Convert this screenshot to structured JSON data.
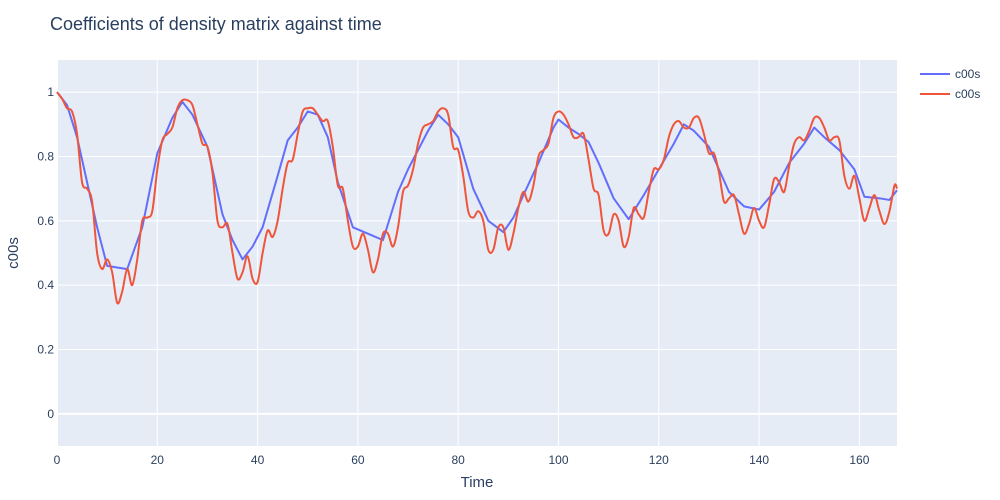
{
  "chart_data": {
    "type": "line",
    "title": "Coefficients of density matrix against time",
    "xlabel": "Time",
    "ylabel": "c00s",
    "xlim": [
      0,
      167.5
    ],
    "ylim": [
      -0.1,
      1.1
    ],
    "xticks": [
      0,
      20,
      40,
      60,
      80,
      100,
      120,
      140,
      160
    ],
    "yticks": [
      0,
      0.2,
      0.4,
      0.6,
      0.8,
      1
    ],
    "grid": true,
    "legend_position": "top-right",
    "colors": {
      "plot_bg": "#e5ecf6",
      "grid": "#ffffff",
      "text": "#2a3f5f"
    },
    "series": [
      {
        "name": "c00s",
        "color": "#636efa",
        "x": [
          0,
          2,
          4,
          6,
          8,
          10,
          12,
          14,
          17,
          20,
          23,
          25,
          27,
          30,
          33,
          35,
          37,
          39,
          41,
          44,
          46,
          48,
          50,
          52,
          54,
          56,
          59,
          62,
          65,
          68,
          70,
          72,
          74,
          76,
          78,
          80,
          83,
          86,
          89,
          91,
          93,
          96,
          99,
          100,
          102,
          104,
          106,
          108,
          111,
          114,
          117,
          120,
          123,
          125,
          127,
          130,
          132,
          134,
          137,
          140,
          143,
          146,
          149,
          151,
          153,
          156,
          159,
          161,
          164,
          166,
          167.5
        ],
        "y": [
          1.0,
          0.96,
          0.86,
          0.72,
          0.58,
          0.46,
          0.455,
          0.45,
          0.58,
          0.81,
          0.92,
          0.97,
          0.93,
          0.83,
          0.62,
          0.54,
          0.48,
          0.52,
          0.58,
          0.74,
          0.85,
          0.89,
          0.94,
          0.93,
          0.86,
          0.72,
          0.58,
          0.56,
          0.54,
          0.69,
          0.76,
          0.82,
          0.88,
          0.93,
          0.9,
          0.86,
          0.7,
          0.6,
          0.565,
          0.61,
          0.68,
          0.78,
          0.89,
          0.915,
          0.89,
          0.87,
          0.845,
          0.78,
          0.67,
          0.605,
          0.68,
          0.76,
          0.84,
          0.9,
          0.88,
          0.83,
          0.76,
          0.69,
          0.645,
          0.635,
          0.69,
          0.78,
          0.84,
          0.89,
          0.86,
          0.82,
          0.76,
          0.675,
          0.67,
          0.665,
          0.695
        ]
      },
      {
        "name": "c00s",
        "color": "#ef553b",
        "x": [
          0,
          1,
          2,
          3,
          4,
          5,
          6,
          7,
          8,
          9,
          10,
          11,
          12,
          13,
          14,
          15,
          16,
          17,
          18,
          19,
          20,
          21,
          22,
          23,
          24,
          25,
          26,
          27,
          28,
          29,
          30,
          31,
          32,
          33,
          34,
          35,
          36,
          37,
          38,
          39,
          40,
          41,
          42,
          43,
          44,
          45,
          46,
          47,
          48,
          49,
          50,
          51,
          52,
          53,
          54,
          55,
          56,
          57,
          58,
          59,
          60,
          61,
          62,
          63,
          64,
          65,
          66,
          67,
          68,
          69,
          70,
          71,
          72,
          73,
          74,
          75,
          76,
          77,
          78,
          79,
          80,
          81,
          82,
          83,
          84,
          85,
          86,
          87,
          88,
          89,
          90,
          91,
          92,
          93,
          94,
          95,
          96,
          97,
          98,
          99,
          100,
          101,
          102,
          103,
          104,
          105,
          106,
          107,
          108,
          109,
          110,
          111,
          112,
          113,
          114,
          115,
          116,
          117,
          118,
          119,
          120,
          121,
          122,
          123,
          124,
          125,
          126,
          127,
          128,
          129,
          130,
          131,
          132,
          133,
          134,
          135,
          136,
          137,
          138,
          139,
          140,
          141,
          142,
          143,
          144,
          145,
          146,
          147,
          148,
          149,
          150,
          151,
          152,
          153,
          154,
          155,
          156,
          157,
          158,
          159,
          160,
          161,
          162,
          163,
          164,
          165,
          166,
          167,
          167.5
        ],
        "y": [
          1.0,
          0.98,
          0.95,
          0.94,
          0.87,
          0.72,
          0.7,
          0.66,
          0.5,
          0.45,
          0.48,
          0.44,
          0.345,
          0.38,
          0.45,
          0.4,
          0.48,
          0.6,
          0.61,
          0.63,
          0.76,
          0.85,
          0.87,
          0.89,
          0.95,
          0.975,
          0.975,
          0.96,
          0.9,
          0.84,
          0.83,
          0.75,
          0.6,
          0.58,
          0.59,
          0.5,
          0.42,
          0.44,
          0.49,
          0.42,
          0.41,
          0.5,
          0.57,
          0.55,
          0.6,
          0.7,
          0.78,
          0.79,
          0.87,
          0.94,
          0.95,
          0.95,
          0.93,
          0.91,
          0.91,
          0.83,
          0.71,
          0.7,
          0.6,
          0.52,
          0.52,
          0.56,
          0.51,
          0.44,
          0.48,
          0.56,
          0.56,
          0.52,
          0.58,
          0.69,
          0.71,
          0.76,
          0.84,
          0.89,
          0.9,
          0.91,
          0.94,
          0.95,
          0.93,
          0.83,
          0.82,
          0.74,
          0.63,
          0.61,
          0.63,
          0.6,
          0.51,
          0.51,
          0.58,
          0.58,
          0.51,
          0.56,
          0.64,
          0.69,
          0.66,
          0.71,
          0.8,
          0.82,
          0.84,
          0.92,
          0.94,
          0.93,
          0.9,
          0.86,
          0.86,
          0.87,
          0.79,
          0.7,
          0.68,
          0.57,
          0.56,
          0.62,
          0.6,
          0.52,
          0.55,
          0.64,
          0.62,
          0.61,
          0.69,
          0.76,
          0.76,
          0.79,
          0.86,
          0.9,
          0.91,
          0.89,
          0.89,
          0.92,
          0.92,
          0.87,
          0.81,
          0.81,
          0.75,
          0.66,
          0.67,
          0.68,
          0.62,
          0.56,
          0.59,
          0.64,
          0.6,
          0.58,
          0.65,
          0.73,
          0.72,
          0.69,
          0.77,
          0.84,
          0.86,
          0.85,
          0.88,
          0.92,
          0.92,
          0.89,
          0.85,
          0.86,
          0.85,
          0.74,
          0.7,
          0.74,
          0.67,
          0.6,
          0.64,
          0.68,
          0.63,
          0.59,
          0.63,
          0.71,
          0.7
        ]
      }
    ]
  }
}
